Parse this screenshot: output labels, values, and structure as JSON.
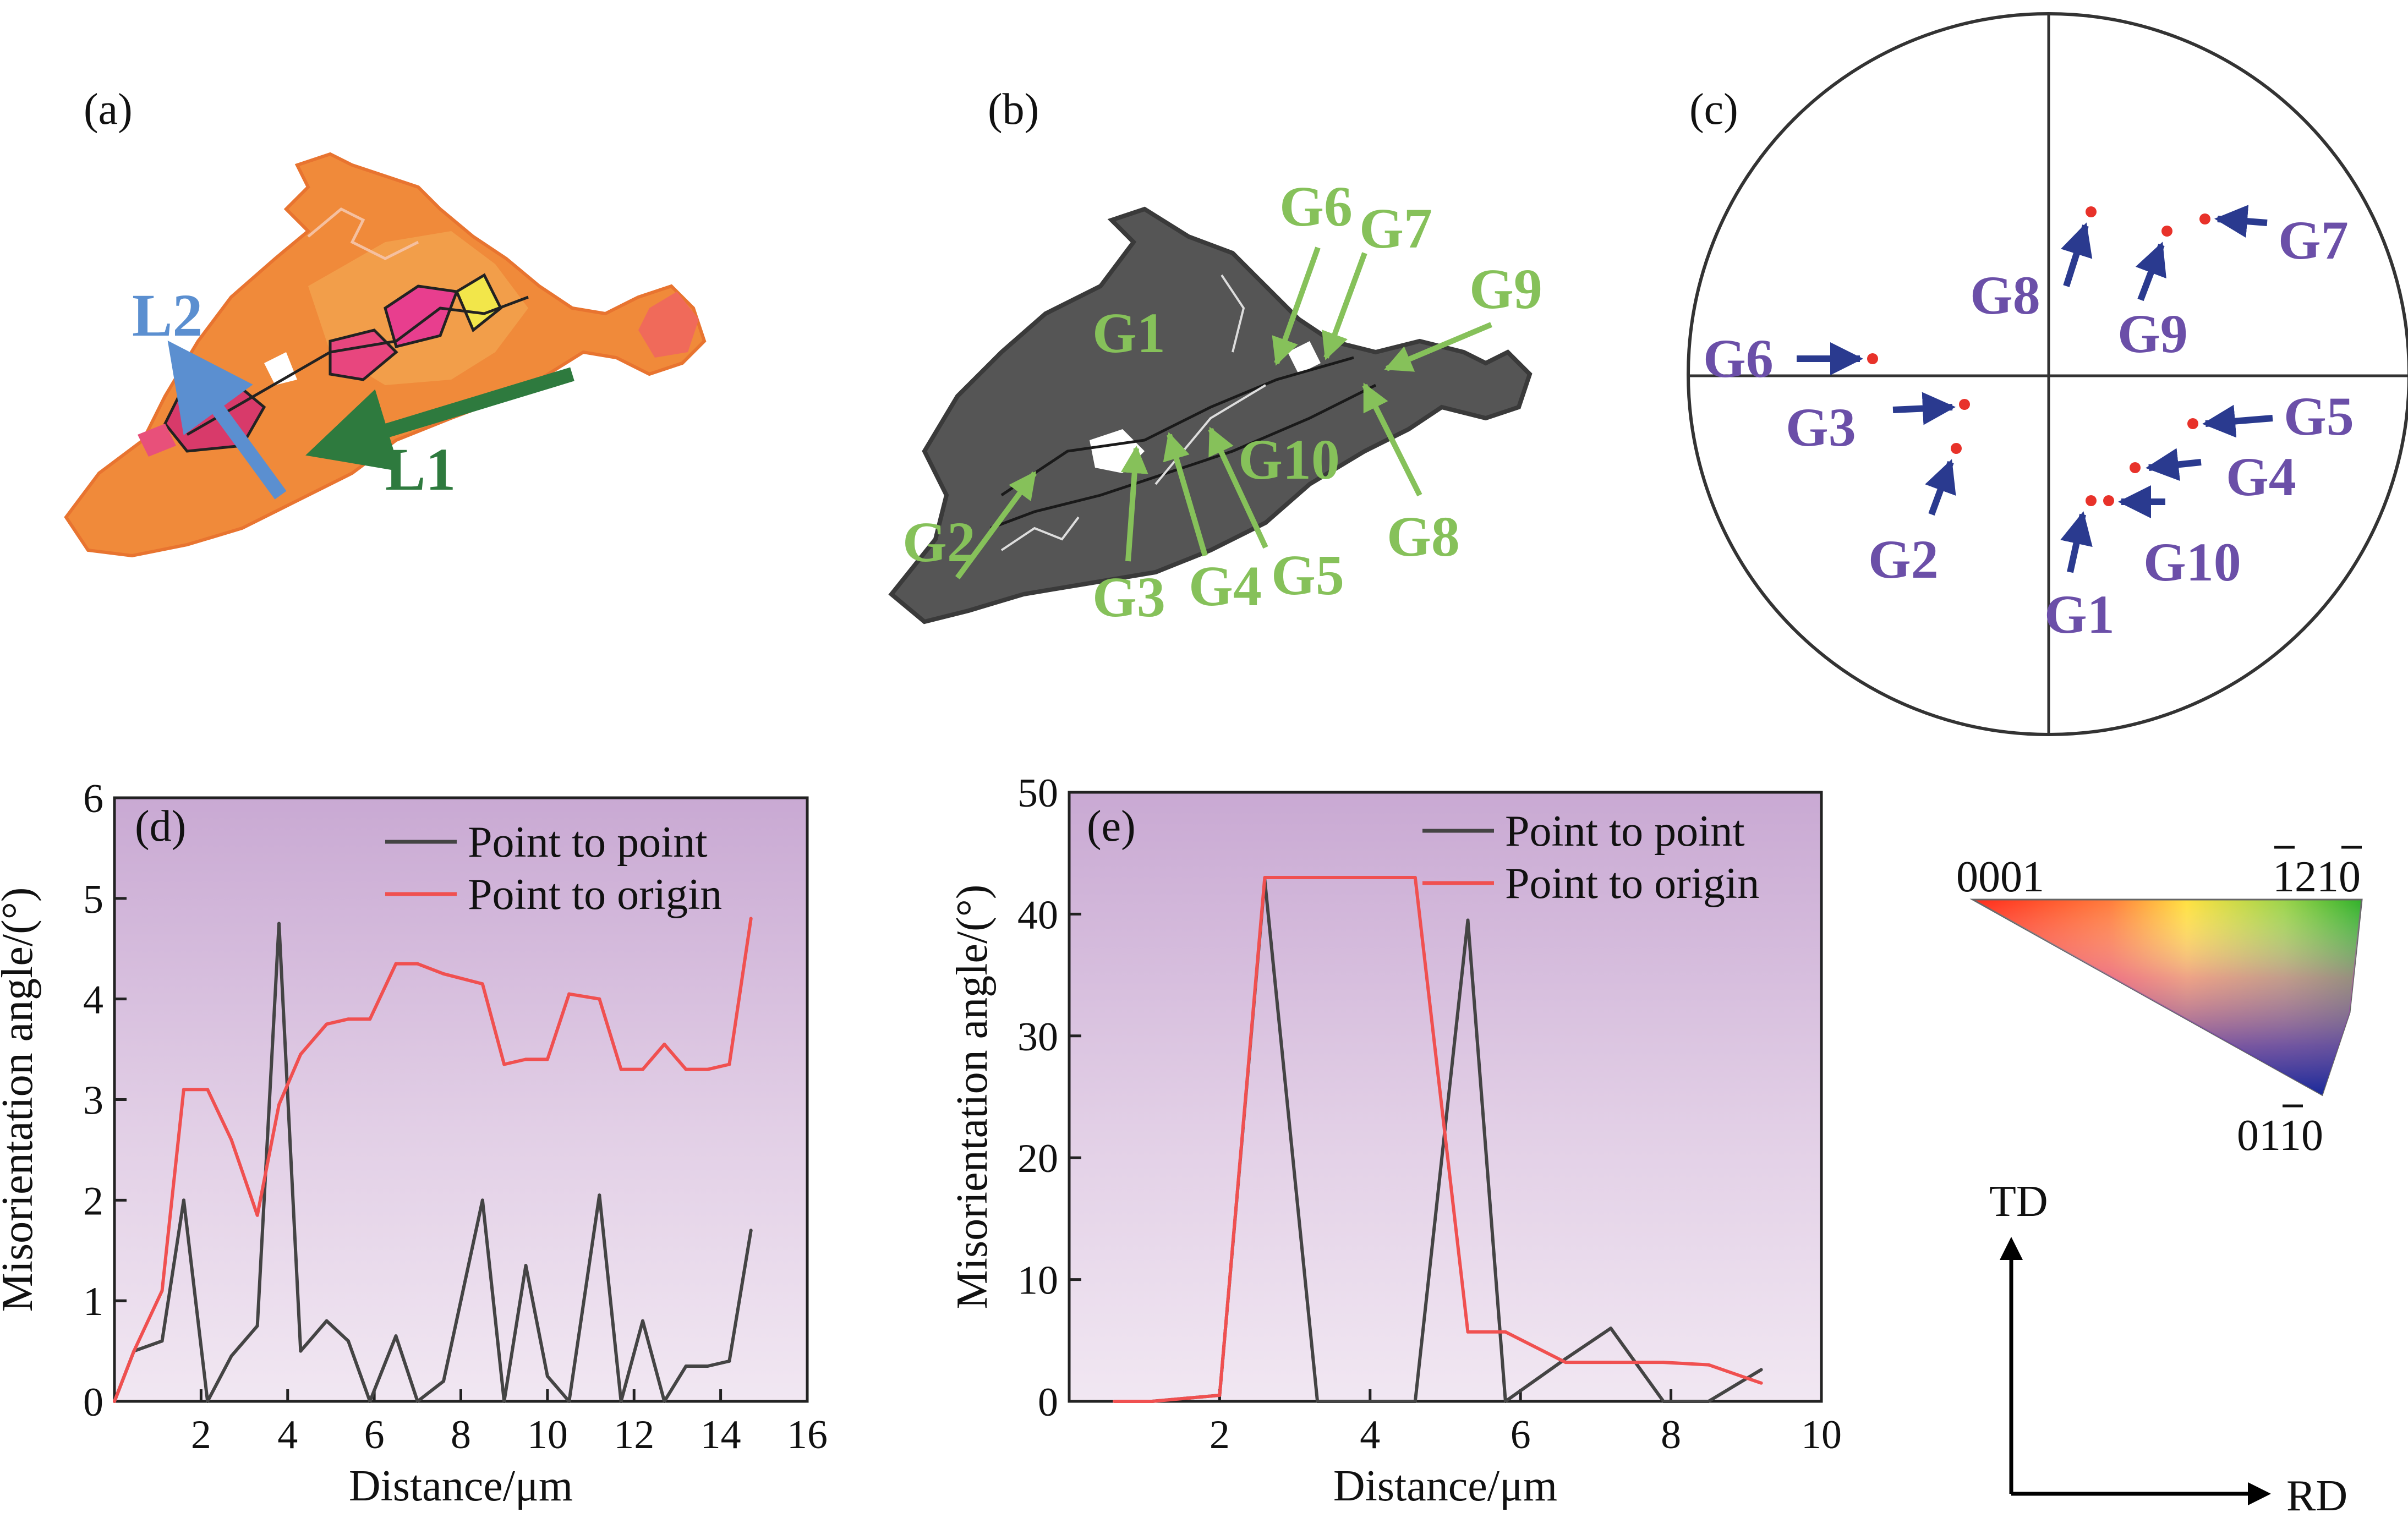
{
  "panels": {
    "a": {
      "label": "(a)",
      "lines": [
        {
          "name": "L2",
          "color": "#5b8fd0"
        },
        {
          "name": "L1",
          "color": "#2e7a3e"
        }
      ]
    },
    "b": {
      "label": "(b)",
      "grains": [
        "G1",
        "G2",
        "G3",
        "G4",
        "G5",
        "G6",
        "G7",
        "G8",
        "G9",
        "G10"
      ],
      "label_color": "#86c15a"
    },
    "c": {
      "label": "(c)",
      "grains": [
        "G1",
        "G2",
        "G3",
        "G4",
        "G5",
        "G6",
        "G7",
        "G8",
        "G9",
        "G10"
      ],
      "label_color": "#6b4fa8",
      "point_color": "#e8322a",
      "arrow_color": "#2a3a8f"
    },
    "ipf_key": {
      "corners": [
        "0001",
        "1210",
        "0110"
      ],
      "overbars": "bar over 1 and 0 in 1210, bar over 1 in 0110"
    },
    "axes_key": {
      "vertical": "TD",
      "horizontal": "RD"
    }
  },
  "chart_data": [
    {
      "id": "d",
      "panel_label": "(d)",
      "type": "line",
      "xlabel": "Distance/μm",
      "ylabel": "Misorientation angle/(°)",
      "xlim": [
        0,
        16
      ],
      "ylim": [
        0,
        6
      ],
      "xticks": [
        2,
        4,
        6,
        8,
        10,
        12,
        14,
        16
      ],
      "yticks": [
        0,
        1,
        2,
        3,
        4,
        5,
        6
      ],
      "legend_position": "top-right",
      "series": [
        {
          "name": "Point to point",
          "color": "#444444",
          "x": [
            0,
            0.45,
            1.1,
            1.6,
            2.15,
            2.7,
            3.3,
            3.8,
            4.3,
            4.9,
            5.4,
            5.9,
            6.5,
            7.0,
            7.6,
            8.5,
            9.0,
            9.5,
            10.0,
            10.5,
            11.2,
            11.7,
            12.2,
            12.7,
            13.2,
            13.7,
            14.2,
            14.7
          ],
          "y": [
            0,
            0.5,
            0.6,
            2.0,
            0,
            0.45,
            0.75,
            4.75,
            0.5,
            0.8,
            0.6,
            0,
            0.65,
            0,
            0.2,
            2.0,
            0,
            1.35,
            0.25,
            0,
            2.05,
            0,
            0.8,
            0,
            0.35,
            0.35,
            0.4,
            1.7
          ]
        },
        {
          "name": "Point to origin",
          "color": "#f05050",
          "x": [
            0,
            0.45,
            1.1,
            1.6,
            2.15,
            2.7,
            3.3,
            3.8,
            4.3,
            4.9,
            5.4,
            5.9,
            6.5,
            7.0,
            7.6,
            8.5,
            9.0,
            9.5,
            10.0,
            10.5,
            11.2,
            11.7,
            12.2,
            12.7,
            13.2,
            13.7,
            14.2,
            14.7
          ],
          "y": [
            0,
            0.5,
            1.1,
            3.1,
            3.1,
            2.6,
            1.85,
            2.95,
            3.45,
            3.75,
            3.8,
            3.8,
            4.35,
            4.35,
            4.25,
            4.15,
            3.35,
            3.4,
            3.4,
            4.05,
            4.0,
            3.3,
            3.3,
            3.55,
            3.3,
            3.3,
            3.35,
            4.8
          ]
        }
      ]
    },
    {
      "id": "e",
      "panel_label": "(e)",
      "type": "line",
      "xlabel": "Distance/μm",
      "ylabel": "Misorientation angle/(°)",
      "xlim": [
        0,
        10
      ],
      "ylim": [
        0,
        50
      ],
      "xticks": [
        2,
        4,
        6,
        8,
        10
      ],
      "yticks": [
        0,
        10,
        20,
        30,
        40,
        50
      ],
      "legend_position": "top-right",
      "series": [
        {
          "name": "Point to point",
          "color": "#444444",
          "x": [
            0.6,
            1.1,
            2.0,
            2.6,
            3.3,
            4.6,
            5.3,
            5.8,
            6.6,
            7.2,
            7.9,
            8.5,
            9.2
          ],
          "y": [
            0,
            0,
            0.5,
            42.8,
            0,
            0,
            39.5,
            0,
            3.5,
            6.0,
            0,
            0,
            2.6
          ]
        },
        {
          "name": "Point to origin",
          "color": "#f05050",
          "x": [
            0.6,
            1.1,
            2.0,
            2.6,
            3.3,
            4.6,
            5.3,
            5.8,
            6.6,
            7.2,
            7.9,
            8.5,
            9.2
          ],
          "y": [
            0,
            0,
            0.5,
            43.0,
            43.0,
            43.0,
            5.7,
            5.7,
            3.2,
            3.2,
            3.2,
            3.0,
            1.5
          ]
        }
      ]
    }
  ]
}
